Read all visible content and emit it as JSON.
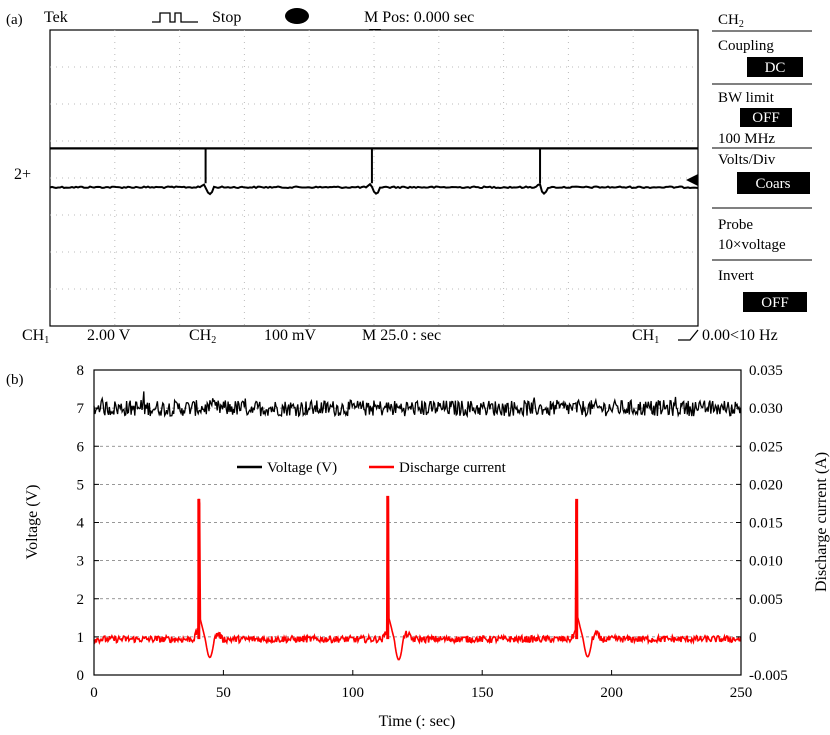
{
  "panel_a": {
    "label": "(a)",
    "status_bar": {
      "brand": "Tek",
      "run_state": "Stop",
      "position": "M Pos: 0.000 sec"
    },
    "channel_marker": "2+",
    "bottom_bar": {
      "ch1_label": "CH",
      "ch1_sub": "1",
      "ch1_scale": "2.00 V",
      "ch2_label": "CH",
      "ch2_sub": "2",
      "ch2_scale": "100 mV",
      "timebase": "M 25.0 : sec",
      "trigger_label": "CH",
      "trigger_sub": "1",
      "trigger_value": "0.00<10 Hz"
    },
    "menu": {
      "title": "CH",
      "title_sub": "2",
      "coupling_label": "Coupling",
      "coupling_value": "DC",
      "bw_label": "BW limit",
      "bw_value": "OFF",
      "bw_freq": "100 MHz",
      "vdiv_label": "Volts/Div",
      "vdiv_value": "Coars",
      "probe_label": "Probe",
      "probe_value": "10×voltage",
      "invert_label": "Invert",
      "invert_value": "OFF"
    },
    "scope_trace": {
      "upper_level_div": 4.8,
      "lower_level_div": 3.75,
      "spike_times": [
        43.5,
        90,
        137
      ]
    }
  },
  "chart_data": {
    "label": "(b)",
    "type": "line",
    "xlabel": "Time (: sec)",
    "ylabel": "Voltage (V)",
    "ylabel_right": "Discharge current (A)",
    "xlim": [
      0,
      250
    ],
    "ylim": [
      0,
      8
    ],
    "ylim_right": [
      -0.005,
      0.035
    ],
    "x_ticks": [
      "0",
      "50",
      "100",
      "150",
      "200",
      "250"
    ],
    "y_ticks": [
      "0",
      "1",
      "2",
      "3",
      "4",
      "5",
      "6",
      "7",
      "8"
    ],
    "y_ticks_right": [
      "-0.005",
      "0",
      "0.005",
      "0.010",
      "0.015",
      "0.020",
      "0.025",
      "0.030",
      "0.035"
    ],
    "grid": "horizontal dashed",
    "legend_position": "upper-center",
    "series": [
      {
        "name": "Voltage (V)",
        "color": "#000000",
        "axis": "left",
        "baseline": 7.0,
        "points": [
          [
            0,
            7.0
          ],
          [
            250,
            7.0
          ]
        ]
      },
      {
        "name": "Discharge current",
        "color": "#ff0000",
        "axis": "right",
        "baseline": -0.0003,
        "spikes": [
          {
            "t": 40.5,
            "peak": 0.0181,
            "dip": -0.0024
          },
          {
            "t": 113.5,
            "peak": 0.0185,
            "dip": -0.0027
          },
          {
            "t": 186.5,
            "peak": 0.0181,
            "dip": -0.0023
          }
        ]
      }
    ]
  }
}
